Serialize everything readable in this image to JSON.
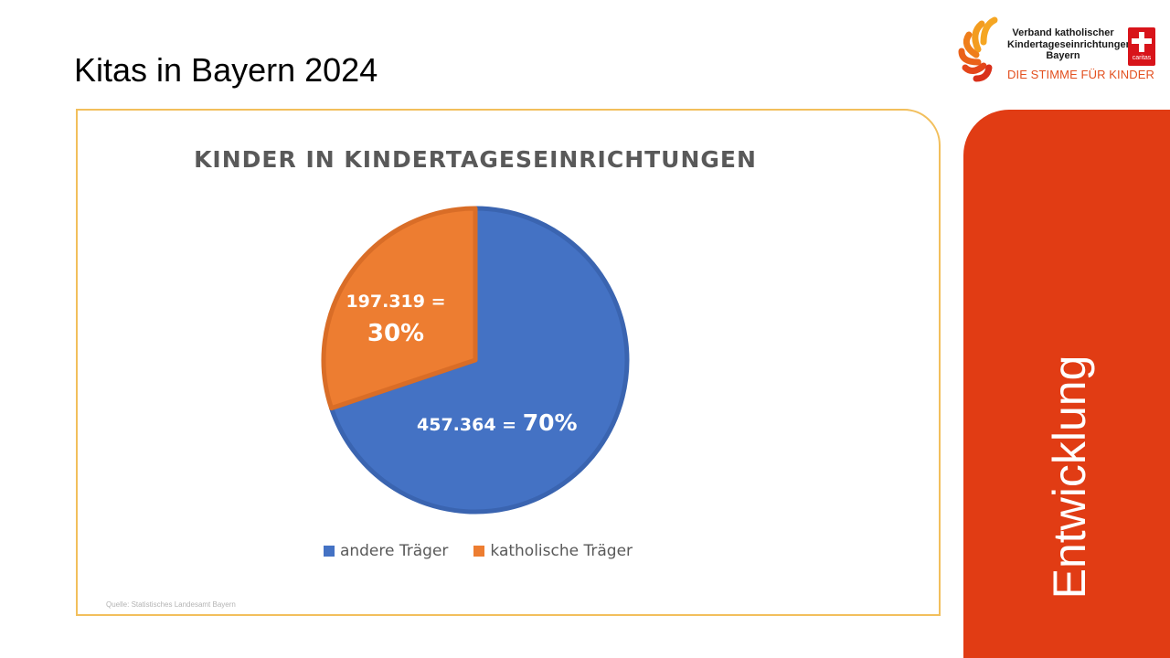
{
  "slide": {
    "title": "Kitas in Bayern 2024",
    "side_label": "Entwicklung"
  },
  "logo": {
    "line1": "Verband katholischer",
    "line2": "Kindertageseinrichtungen",
    "line3": "Bayern",
    "slogan": "DIE STIMME FÜR KINDER",
    "badge_text": "caritas"
  },
  "colors": {
    "accent": "#e13c14",
    "frame": "#f2bf5c",
    "andere": "#4472c4",
    "katholisch": "#ed7d31"
  },
  "chart_data": {
    "type": "pie",
    "title": "KINDER IN KINDERTAGESEINRICHTUNGEN",
    "slices": [
      {
        "name": "andere Träger",
        "value": 457364,
        "percent": 70,
        "value_label": "457.364 =",
        "percent_label": "70%",
        "color": "#4472c4"
      },
      {
        "name": "katholische Träger",
        "value": 197319,
        "percent": 30,
        "value_label": "197.319 =",
        "percent_label": "30%",
        "color": "#ed7d31"
      }
    ],
    "legend": {
      "position": "bottom"
    },
    "source": "Quelle: Statistisches Landesamt Bayern"
  }
}
